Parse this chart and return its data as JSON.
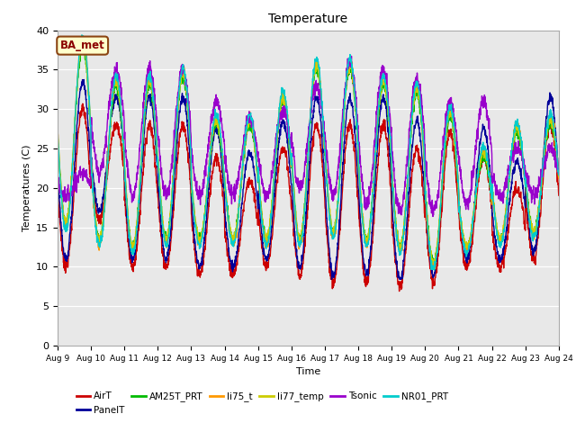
{
  "title": "Temperature",
  "xlabel": "Time",
  "ylabel": "Temperatures (C)",
  "ylim": [
    0,
    40
  ],
  "background_color": "#e8e8e8",
  "legend_label": "BA_met",
  "legend_box_facecolor": "#ffffcc",
  "legend_box_edgecolor": "#8b4513",
  "legend_text_color": "#8b0000",
  "series_order": [
    "AirT",
    "PanelT",
    "AM25T_PRT",
    "li75_t",
    "li77_temp",
    "Tsonic",
    "NR01_PRT"
  ],
  "series": {
    "AirT": {
      "color": "#cc0000",
      "lw": 1.0
    },
    "PanelT": {
      "color": "#000099",
      "lw": 1.0
    },
    "AM25T_PRT": {
      "color": "#00bb00",
      "lw": 1.0
    },
    "li75_t": {
      "color": "#ff9900",
      "lw": 1.0
    },
    "li77_temp": {
      "color": "#cccc00",
      "lw": 1.0
    },
    "Tsonic": {
      "color": "#9900cc",
      "lw": 1.0
    },
    "NR01_PRT": {
      "color": "#00cccc",
      "lw": 1.0
    }
  },
  "xtick_labels": [
    "Aug 9",
    "Aug 10",
    "Aug 11",
    "Aug 12",
    "Aug 13",
    "Aug 14",
    "Aug 15",
    "Aug 16",
    "Aug 17",
    "Aug 18",
    "Aug 19",
    "Aug 20",
    "Aug 21",
    "Aug 22",
    "Aug 23",
    "Aug 24"
  ],
  "ytick_values": [
    0,
    5,
    10,
    15,
    20,
    25,
    30,
    35,
    40
  ],
  "n_days": 15,
  "pts_per_day": 144
}
